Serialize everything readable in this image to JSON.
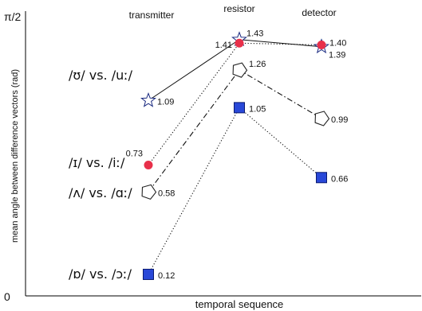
{
  "chart_data": {
    "type": "line",
    "xlabel": "temporal sequence",
    "ylabel": "mean angle between difference vectors (rad)",
    "categories": [
      "transmitter",
      "resistor",
      "detector"
    ],
    "y_ticks": [
      "0",
      "π/2"
    ],
    "ylim": [
      0,
      1.5708
    ],
    "grid": false,
    "legend": "none",
    "series": [
      {
        "name": "/ʊ/ vs. /uː/",
        "marker": "star",
        "line_style": "solid",
        "marker_fill": "#ffffff",
        "marker_stroke": "#1a2a80",
        "points": [
          {
            "x": "transmitter",
            "y": 1.09,
            "label": "1.09"
          },
          {
            "x": "resistor",
            "y": 1.43,
            "label": "1.43"
          },
          {
            "x": "detector",
            "y": 1.39,
            "label": "1.39"
          }
        ]
      },
      {
        "name": "/ɪ/ vs. /iː/",
        "marker": "circle",
        "line_style": "dotted",
        "marker_fill": "#e8304a",
        "marker_stroke": "#e8304a",
        "points": [
          {
            "x": "transmitter",
            "y": 0.73,
            "label": "0.73"
          },
          {
            "x": "resistor",
            "y": 1.41,
            "label": "1.41"
          },
          {
            "x": "detector",
            "y": 1.4,
            "label": "1.40"
          }
        ]
      },
      {
        "name": "/ʌ/ vs. /ɑː/",
        "marker": "pentagon",
        "line_style": "dashdot",
        "marker_fill": "#ffffff",
        "marker_stroke": "#222222",
        "points": [
          {
            "x": "transmitter",
            "y": 0.58,
            "label": "0.58"
          },
          {
            "x": "resistor",
            "y": 1.26,
            "label": "1.26"
          },
          {
            "x": "detector",
            "y": 0.99,
            "label": "0.99"
          }
        ]
      },
      {
        "name": "/ɒ/ vs. /ɔː/",
        "marker": "square",
        "line_style": "dotted",
        "marker_fill": "#2948d8",
        "marker_stroke": "#0a1a70",
        "points": [
          {
            "x": "transmitter",
            "y": 0.12,
            "label": "0.12"
          },
          {
            "x": "resistor",
            "y": 1.05,
            "label": "1.05"
          },
          {
            "x": "detector",
            "y": 0.66,
            "label": "0.66"
          }
        ]
      }
    ]
  }
}
